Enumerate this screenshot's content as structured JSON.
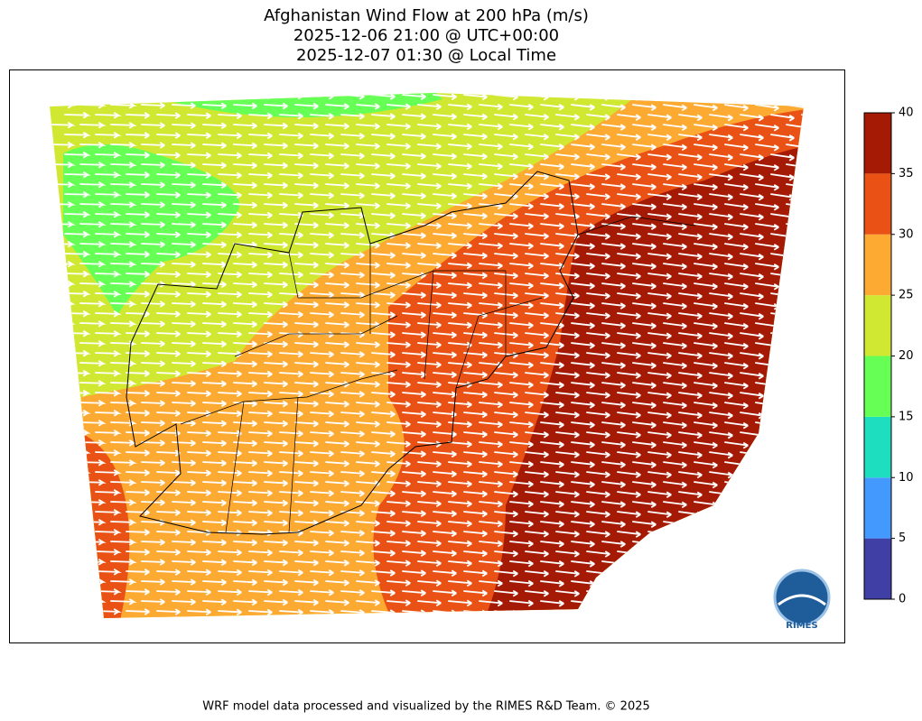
{
  "title": {
    "lines": [
      "Afghanistan Wind Flow at 200 hPa (m/s)",
      "2025-12-06 21:00 @ UTC+00:00",
      "2025-12-07 01:30 @ Local Time"
    ]
  },
  "colorbar": {
    "ticks": [
      0,
      5,
      10,
      15,
      20,
      25,
      30,
      35,
      40
    ],
    "colors": [
      "#3f3fa6",
      "#4499ff",
      "#1ddfc0",
      "#66ff55",
      "#d1e833",
      "#fdaa33",
      "#e95214",
      "#a51a05"
    ]
  },
  "logo": {
    "label": "RIMES"
  },
  "footer": {
    "text": "WRF model data processed and visualized by the RIMES R&D Team. © 2025"
  }
}
